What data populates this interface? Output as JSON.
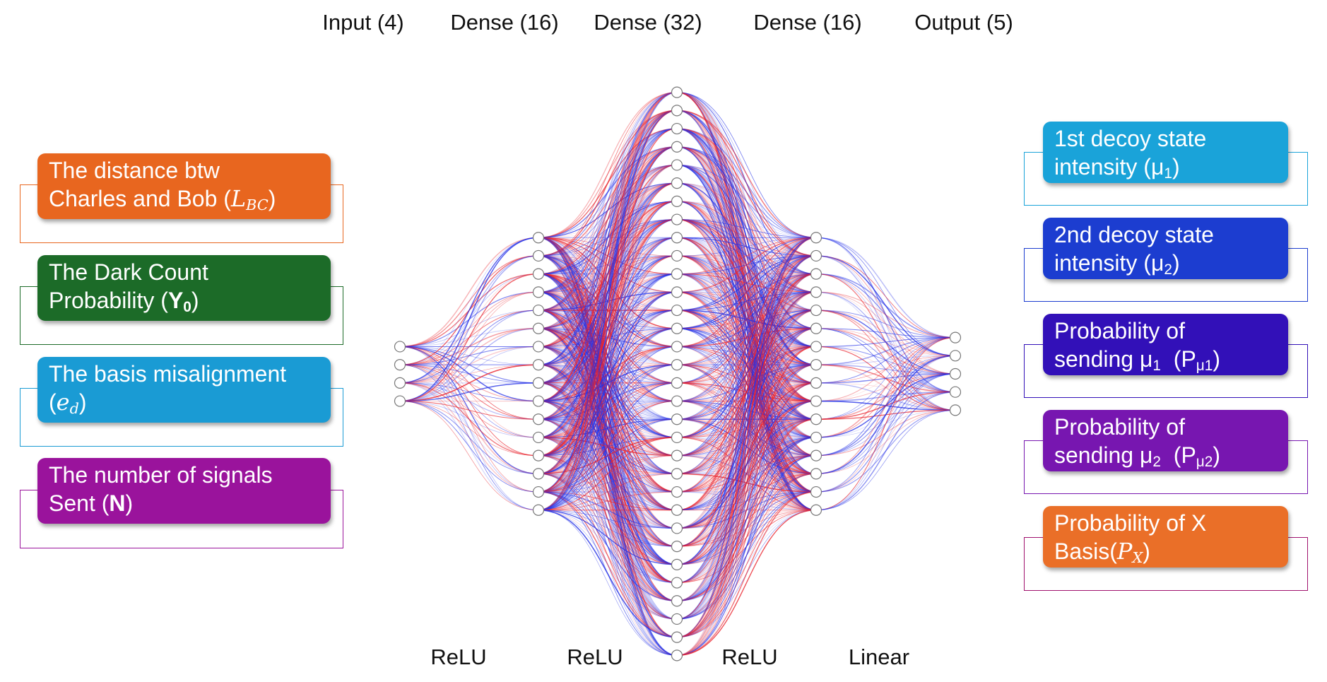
{
  "layers": [
    {
      "title": "Input (4)",
      "units": 4
    },
    {
      "title": "Dense (16)",
      "units": 16
    },
    {
      "title": "Dense (32)",
      "units": 32
    },
    {
      "title": "Dense (16)",
      "units": 16
    },
    {
      "title": "Output (5)",
      "units": 5
    }
  ],
  "activations": [
    "ReLU",
    "ReLU",
    "ReLU",
    "Linear"
  ],
  "connection_colors": [
    "#e8202a",
    "#2430e6"
  ],
  "inputs": [
    {
      "line1": "The distance btw",
      "line2_prefix": "Charles and Bob (",
      "symbol": "L",
      "sub": "BC",
      "line2_suffix": ")",
      "color": "#e8661f",
      "border": "#e8661f"
    },
    {
      "line1": "The Dark Count",
      "line2_prefix": "Probability (",
      "symbol": "Y",
      "sub": "0",
      "line2_suffix": ")",
      "color": "#1c6b28",
      "border": "#1c6b28"
    },
    {
      "line1": "The basis misalignment",
      "line2_prefix": "(",
      "symbol": "e",
      "sub": "d",
      "line2_suffix": ")",
      "color": "#1a9bd4",
      "border": "#1a9bd4"
    },
    {
      "line1": "The number of signals",
      "line2_prefix": "Sent (",
      "symbol": "N",
      "sub": "",
      "line2_suffix": ")",
      "color": "#9a139c",
      "border": "#9a139c"
    }
  ],
  "outputs": [
    {
      "line1": "1st decoy state",
      "line2_prefix": "intensity (μ",
      "sub": "1",
      "line2_suffix": ")",
      "color": "#1aa3d9",
      "border": "#1aa3d9"
    },
    {
      "line1": "2nd decoy state",
      "line2_prefix": "intensity (μ",
      "sub": "2",
      "line2_suffix": ")",
      "color": "#1c3dd0",
      "border": "#1c3dd0"
    },
    {
      "line1": "Probability of",
      "line2_prefix": "sending μ",
      "sub": "1",
      "line2_mid": "  (P",
      "sub2": "μ1",
      "line2_suffix": ")",
      "color": "#3210b8",
      "border": "#3210b8"
    },
    {
      "line1": "Probability of",
      "line2_prefix": "sending μ",
      "sub": "2",
      "line2_mid": "  (P",
      "sub2": "μ2",
      "line2_suffix": ")",
      "color": "#7716b0",
      "border": "#7716b0"
    },
    {
      "line1": "Probability of X",
      "line2_prefix": "Basis(",
      "symbol": "P",
      "sub": "X",
      "line2_suffix": ")",
      "color": "#ea6f28",
      "border": "#a0126e"
    }
  ]
}
